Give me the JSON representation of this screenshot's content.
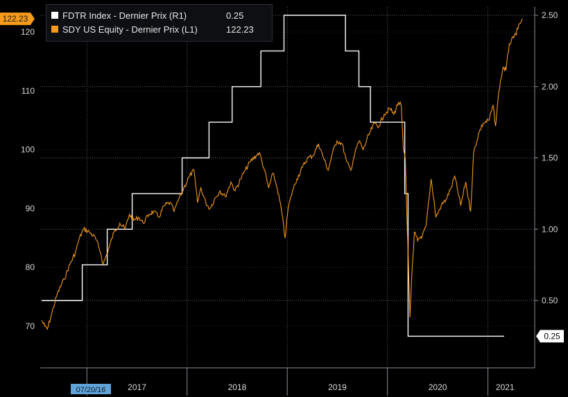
{
  "legend": {
    "series1": {
      "name": "FDTR Index - Dernier Prix (R1)",
      "value": "0.25",
      "color": "#ffffff"
    },
    "series2": {
      "name": "SDY US Equity - Dernier Prix (L1)",
      "value": "122.23",
      "color": "#f59a1b"
    }
  },
  "colors": {
    "background": "#000000",
    "panel": "#0d0f13",
    "grid": "#5a5f6a",
    "axis_text": "#d9d9d9",
    "fdtr": "#ffffff",
    "sdy": "#f59a1b",
    "date_tag_bg": "#5fa3d8"
  },
  "chart_data": {
    "type": "line",
    "grid": true,
    "x_start_label": "07/20/16",
    "x_year_labels": [
      "2017",
      "2018",
      "2019",
      "2020",
      "2021"
    ],
    "y_left": {
      "ticks": [
        "70",
        "80",
        "90",
        "100",
        "110",
        "120"
      ],
      "ylim": [
        64.5,
        124.5
      ],
      "last_value_tag": "122.23"
    },
    "y_right": {
      "ticks": [
        "0.50",
        "1.00",
        "1.50",
        "2.00",
        "2.50"
      ],
      "ylim": [
        0.0,
        2.5
      ],
      "last_value_tag": "0.25"
    },
    "series": [
      {
        "name": "FDTR Index - Dernier Prix (R1)",
        "axis": "right",
        "step": true,
        "points": [
          [
            "2016-07-20",
            0.5
          ],
          [
            "2016-12-15",
            0.75
          ],
          [
            "2017-03-16",
            1.0
          ],
          [
            "2017-06-15",
            1.25
          ],
          [
            "2017-12-14",
            1.5
          ],
          [
            "2018-03-22",
            1.75
          ],
          [
            "2018-06-14",
            2.0
          ],
          [
            "2018-09-27",
            2.25
          ],
          [
            "2018-12-20",
            2.5
          ],
          [
            "2019-08-01",
            2.25
          ],
          [
            "2019-09-19",
            2.0
          ],
          [
            "2019-10-31",
            1.75
          ],
          [
            "2020-03-04",
            1.25
          ],
          [
            "2020-03-16",
            0.25
          ],
          [
            "2021-03-01",
            0.25
          ]
        ]
      },
      {
        "name": "SDY US Equity - Dernier Prix (L1)",
        "axis": "left",
        "points": [
          [
            "2016-07-20",
            71.0
          ],
          [
            "2016-08-01",
            70.0
          ],
          [
            "2016-08-10",
            69.5
          ],
          [
            "2016-08-25",
            72.0
          ],
          [
            "2016-09-15",
            75.5
          ],
          [
            "2016-10-10",
            78.0
          ],
          [
            "2016-10-31",
            80.5
          ],
          [
            "2016-11-20",
            82.5
          ],
          [
            "2016-12-05",
            85.0
          ],
          [
            "2016-12-20",
            86.5
          ],
          [
            "2017-01-10",
            86.0
          ],
          [
            "2017-02-01",
            85.0
          ],
          [
            "2017-02-20",
            82.5
          ],
          [
            "2017-03-01",
            80.5
          ],
          [
            "2017-03-20",
            83.0
          ],
          [
            "2017-04-10",
            86.0
          ],
          [
            "2017-05-01",
            87.5
          ],
          [
            "2017-05-20",
            86.5
          ],
          [
            "2017-06-05",
            89.0
          ],
          [
            "2017-06-20",
            88.0
          ],
          [
            "2017-07-10",
            88.5
          ],
          [
            "2017-07-25",
            87.5
          ],
          [
            "2017-08-15",
            89.0
          ],
          [
            "2017-09-01",
            89.5
          ],
          [
            "2017-09-20",
            88.5
          ],
          [
            "2017-10-10",
            90.5
          ],
          [
            "2017-10-31",
            91.0
          ],
          [
            "2017-11-15",
            89.5
          ],
          [
            "2017-12-01",
            91.5
          ],
          [
            "2017-12-20",
            93.5
          ],
          [
            "2018-01-10",
            95.5
          ],
          [
            "2018-01-26",
            96.5
          ],
          [
            "2018-02-08",
            91.0
          ],
          [
            "2018-02-20",
            93.5
          ],
          [
            "2018-03-10",
            91.0
          ],
          [
            "2018-03-25",
            90.0
          ],
          [
            "2018-04-10",
            91.5
          ],
          [
            "2018-05-01",
            93.0
          ],
          [
            "2018-05-20",
            92.0
          ],
          [
            "2018-06-10",
            94.5
          ],
          [
            "2018-06-25",
            93.0
          ],
          [
            "2018-07-15",
            95.0
          ],
          [
            "2018-08-01",
            96.5
          ],
          [
            "2018-08-20",
            98.0
          ],
          [
            "2018-09-10",
            99.0
          ],
          [
            "2018-09-21",
            99.5
          ],
          [
            "2018-10-10",
            96.5
          ],
          [
            "2018-10-25",
            93.5
          ],
          [
            "2018-11-10",
            96.0
          ],
          [
            "2018-11-25",
            93.5
          ],
          [
            "2018-12-10",
            90.0
          ],
          [
            "2018-12-24",
            85.0
          ],
          [
            "2019-01-04",
            90.0
          ],
          [
            "2019-01-20",
            93.0
          ],
          [
            "2019-02-05",
            95.0
          ],
          [
            "2019-02-25",
            97.0
          ],
          [
            "2019-03-15",
            98.5
          ],
          [
            "2019-04-05",
            99.0
          ],
          [
            "2019-04-25",
            101.0
          ],
          [
            "2019-05-10",
            99.0
          ],
          [
            "2019-05-30",
            96.5
          ],
          [
            "2019-06-15",
            99.5
          ],
          [
            "2019-07-01",
            101.5
          ],
          [
            "2019-07-20",
            101.0
          ],
          [
            "2019-08-05",
            98.0
          ],
          [
            "2019-08-20",
            96.5
          ],
          [
            "2019-09-05",
            99.5
          ],
          [
            "2019-09-20",
            101.5
          ],
          [
            "2019-10-05",
            100.0
          ],
          [
            "2019-10-25",
            102.5
          ],
          [
            "2019-11-15",
            104.5
          ],
          [
            "2019-12-01",
            104.0
          ],
          [
            "2019-12-20",
            106.0
          ],
          [
            "2020-01-10",
            107.0
          ],
          [
            "2020-01-24",
            106.0
          ],
          [
            "2020-02-10",
            108.0
          ],
          [
            "2020-02-20",
            107.5
          ],
          [
            "2020-02-28",
            100.0
          ],
          [
            "2020-03-06",
            98.5
          ],
          [
            "2020-03-12",
            88.0
          ],
          [
            "2020-03-18",
            80.0
          ],
          [
            "2020-03-23",
            71.5
          ],
          [
            "2020-03-30",
            79.0
          ],
          [
            "2020-04-08",
            86.0
          ],
          [
            "2020-04-20",
            84.5
          ],
          [
            "2020-05-05",
            85.0
          ],
          [
            "2020-05-20",
            87.0
          ],
          [
            "2020-06-08",
            95.0
          ],
          [
            "2020-06-26",
            88.5
          ],
          [
            "2020-07-15",
            90.5
          ],
          [
            "2020-08-01",
            91.5
          ],
          [
            "2020-08-20",
            93.5
          ],
          [
            "2020-09-02",
            95.5
          ],
          [
            "2020-09-24",
            90.5
          ],
          [
            "2020-10-12",
            94.5
          ],
          [
            "2020-10-30",
            89.5
          ],
          [
            "2020-11-10",
            99.5
          ],
          [
            "2020-11-30",
            103.0
          ],
          [
            "2020-12-15",
            104.5
          ],
          [
            "2021-01-05",
            105.0
          ],
          [
            "2021-01-20",
            107.5
          ],
          [
            "2021-01-29",
            104.0
          ],
          [
            "2021-02-10",
            110.0
          ],
          [
            "2021-02-25",
            114.0
          ],
          [
            "2021-03-08",
            113.5
          ],
          [
            "2021-03-20",
            118.0
          ],
          [
            "2021-04-05",
            119.0
          ],
          [
            "2021-04-20",
            120.5
          ],
          [
            "2021-05-06",
            122.23
          ]
        ]
      }
    ]
  }
}
